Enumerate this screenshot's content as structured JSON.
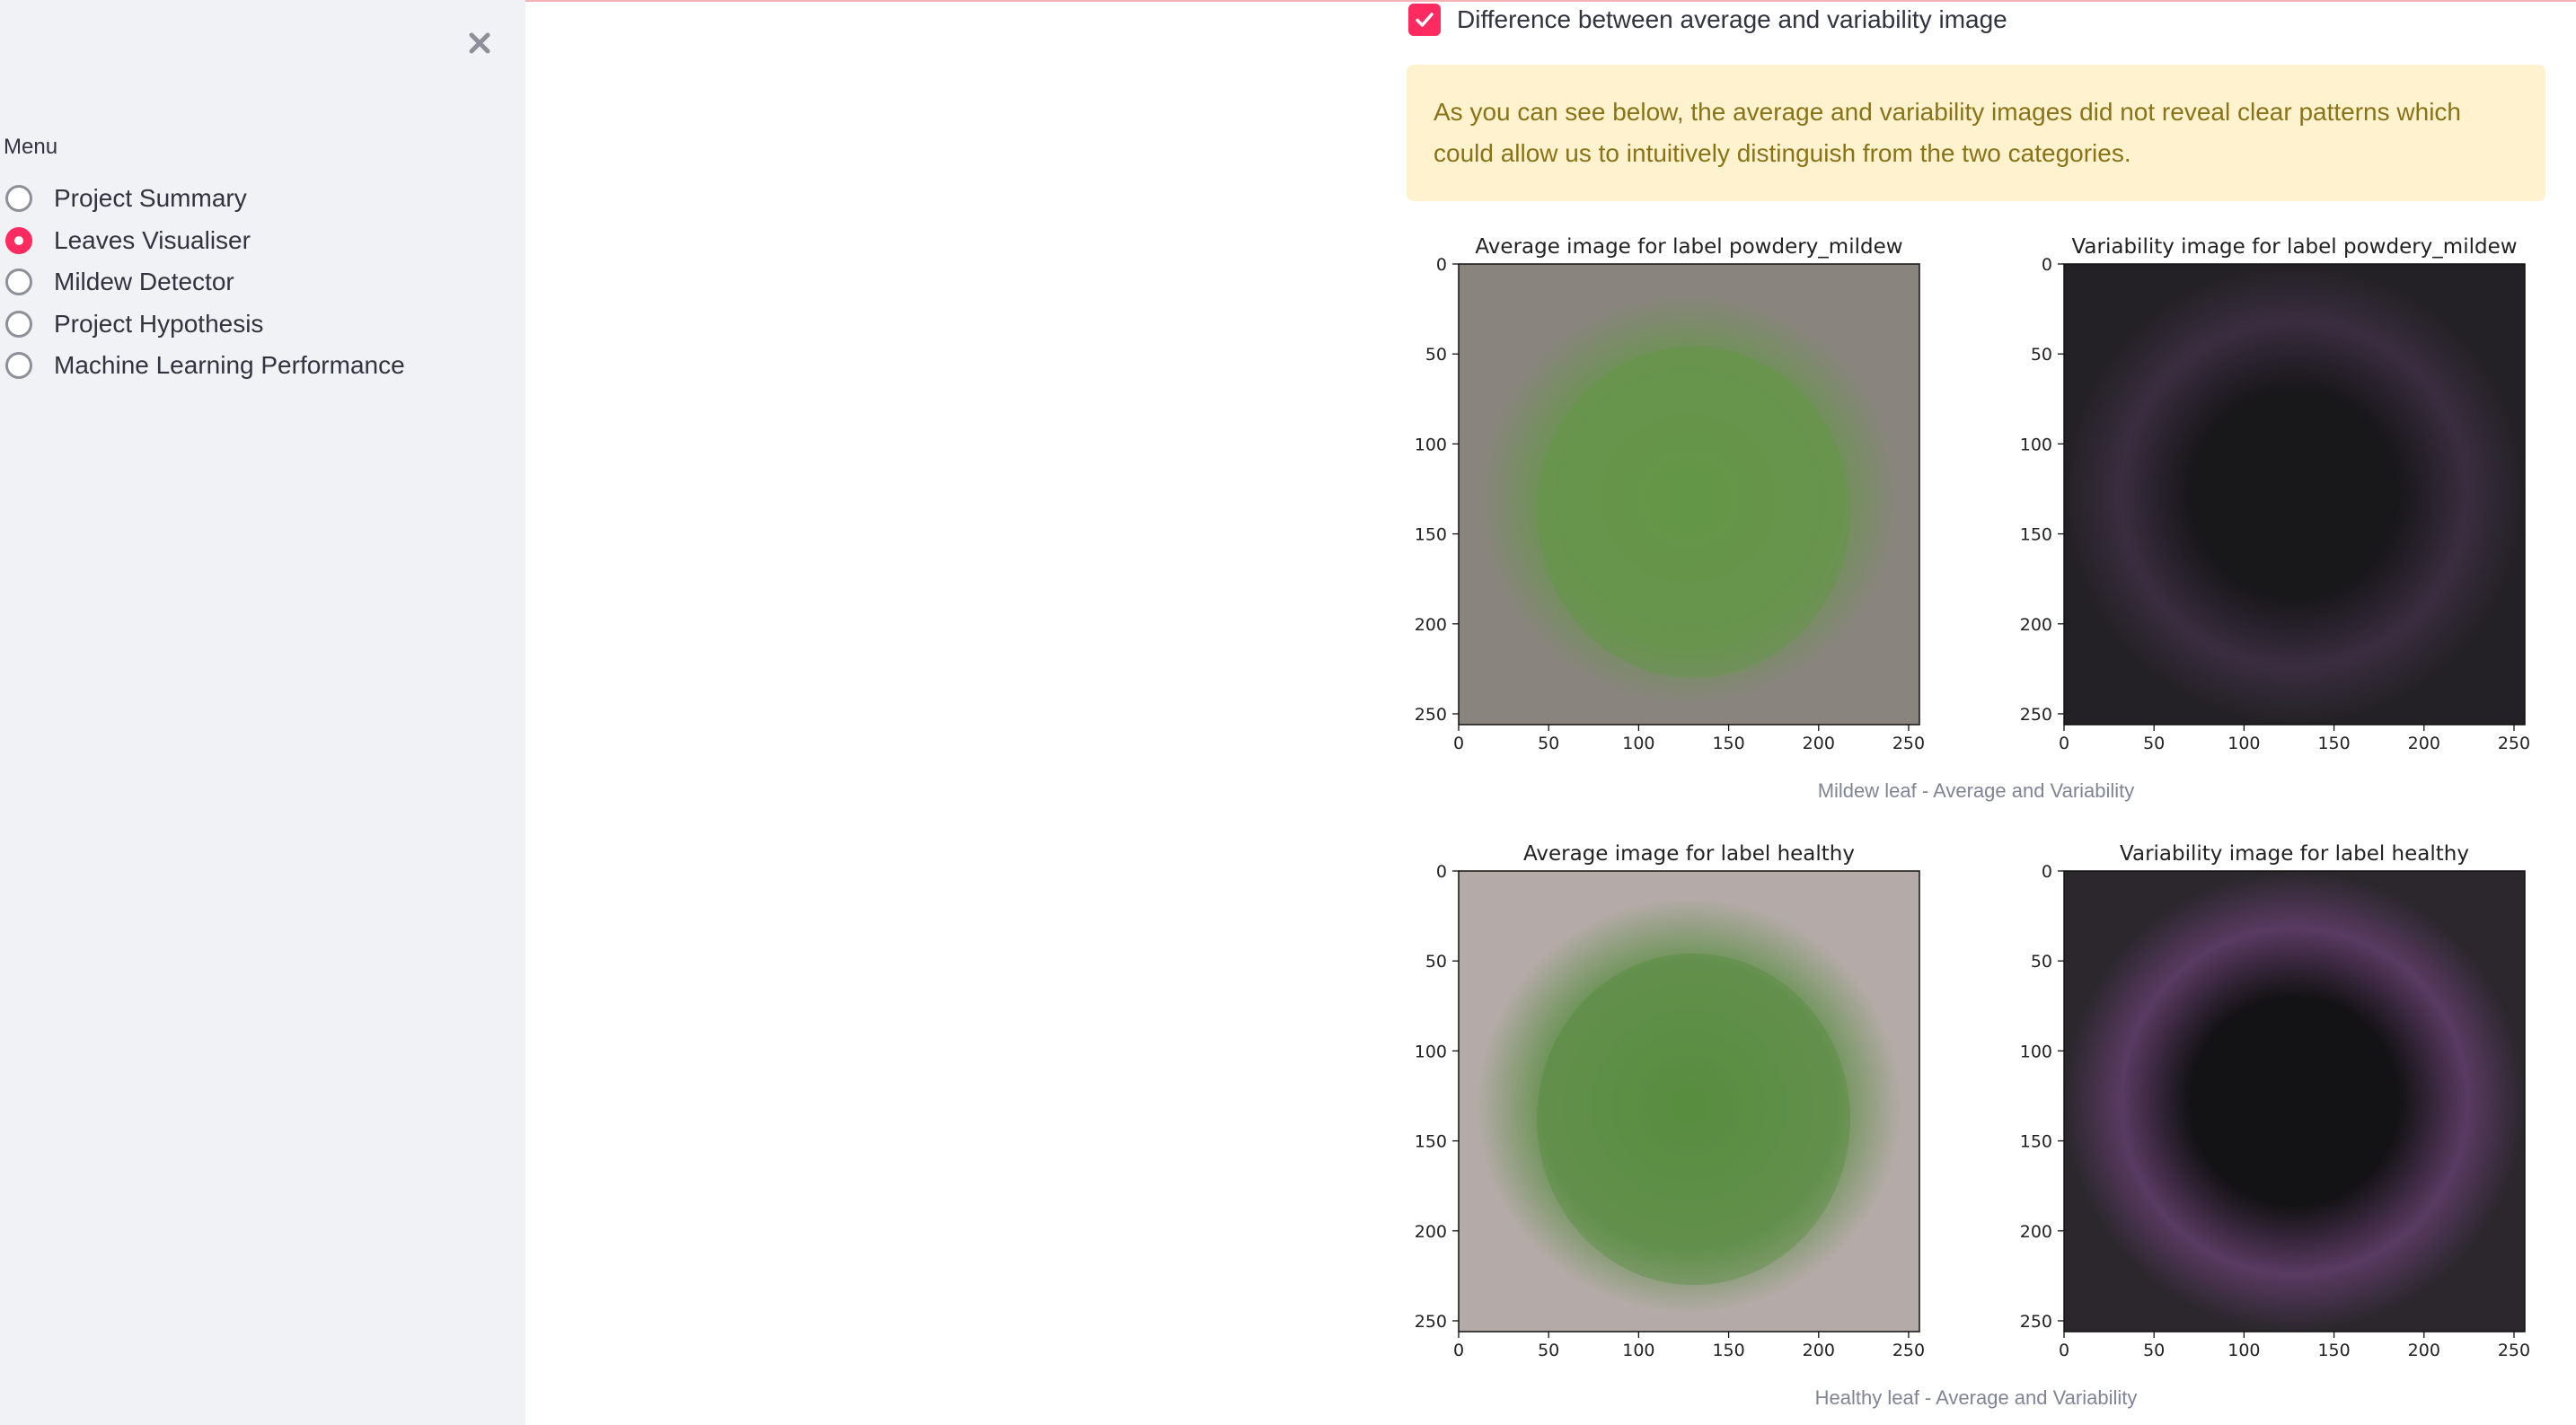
{
  "sidebar": {
    "menu_label": "Menu",
    "items": [
      {
        "label": "Project Summary",
        "selected": false
      },
      {
        "label": "Leaves Visualiser",
        "selected": true
      },
      {
        "label": "Mildew Detector",
        "selected": false
      },
      {
        "label": "Project Hypothesis",
        "selected": false
      },
      {
        "label": "Machine Learning Performance",
        "selected": false
      }
    ]
  },
  "main": {
    "checkbox": {
      "label": "Difference between average and variability image",
      "checked": true
    },
    "alert_text": "As you can see below, the average and variability images did not reveal clear patterns which could allow us to intuitively distinguish from the two categories.",
    "figures": [
      {
        "caption": "Mildew leaf - Average and Variability",
        "plots": [
          {
            "title": "Average image for label powdery_mildew",
            "kind": "average",
            "bg": "#8a847f",
            "blob": "#5d9a3c",
            "blob_opacity": 0.75
          },
          {
            "title": "Variability image for label powdery_mildew",
            "kind": "variability",
            "bg": "#232125",
            "ring": "#3a2d40",
            "center": "#18171a"
          }
        ]
      },
      {
        "caption": "Healthy leaf - Average and Variability",
        "plots": [
          {
            "title": "Average image for label healthy",
            "kind": "average",
            "bg": "#b4aaa7",
            "blob": "#4e8a35",
            "blob_opacity": 0.85
          },
          {
            "title": "Variability image for label healthy",
            "kind": "variability",
            "bg": "#2b272d",
            "ring": "#5a3a62",
            "center": "#131214"
          }
        ]
      }
    ],
    "axis_ticks": [
      "0",
      "50",
      "100",
      "150",
      "200",
      "250"
    ]
  },
  "colors": {
    "accent": "#ff2b60",
    "sidebar_bg": "#f0f2f6",
    "alert_bg": "#fff3cf",
    "alert_text": "#8a7316"
  },
  "icons": {
    "close": "close-icon",
    "check": "check-icon"
  }
}
